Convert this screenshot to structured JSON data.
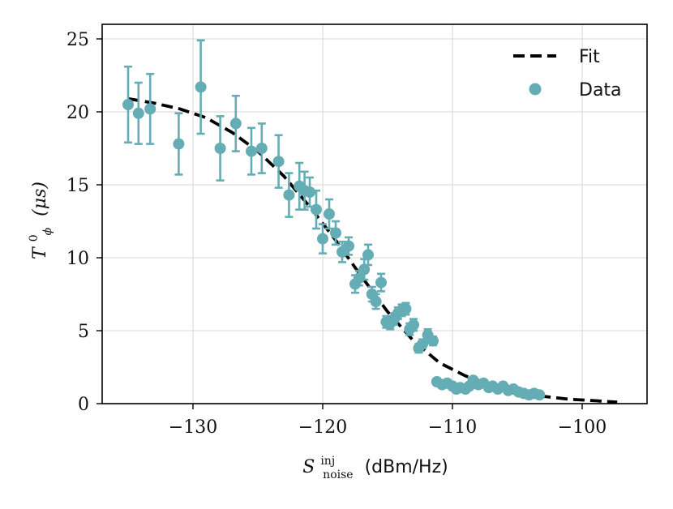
{
  "chart_data": {
    "type": "scatter",
    "title": "",
    "xlabel": {
      "symbol": "S",
      "superscript": "inj",
      "subscript": "noise",
      "units": "(dBm/Hz)"
    },
    "ylabel": {
      "symbol": "T",
      "superscript": "0",
      "subscript": "ϕ",
      "units": "(μs)"
    },
    "xlim": [
      -137,
      -95
    ],
    "ylim": [
      0,
      26
    ],
    "xticks": [
      -130,
      -120,
      -110,
      -100
    ],
    "xtick_labels": [
      "−130",
      "−120",
      "−110",
      "−100"
    ],
    "yticks": [
      0,
      5,
      10,
      15,
      20,
      25
    ],
    "ytick_labels": [
      "0",
      "5",
      "10",
      "15",
      "20",
      "25"
    ],
    "grid": true,
    "legend": {
      "position": "top-right",
      "entries": [
        "Fit",
        "Data"
      ]
    },
    "colors": {
      "data": "#64adb5",
      "fit": "#000000",
      "grid": "#dddddd"
    },
    "series": [
      {
        "name": "Data",
        "kind": "scatter",
        "x": [
          -135.0,
          -134.2,
          -133.3,
          -131.1,
          -129.4,
          -127.9,
          -126.7,
          -125.5,
          -124.7,
          -123.4,
          -122.6,
          -121.8,
          -121.4,
          -121.0,
          -120.5,
          -120.0,
          -119.5,
          -119.0,
          -118.5,
          -118.0,
          -117.5,
          -117.2,
          -116.8,
          -116.5,
          -116.2,
          -115.9,
          -115.5,
          -115.1,
          -114.8,
          -114.5,
          -114.2,
          -113.9,
          -113.6,
          -113.3,
          -113.0,
          -112.6,
          -112.3,
          -111.9,
          -111.5,
          -111.2,
          -110.8,
          -110.4,
          -110.0,
          -109.7,
          -109.4,
          -109.0,
          -108.7,
          -108.4,
          -108.0,
          -107.6,
          -107.2,
          -106.9,
          -106.5,
          -106.1,
          -105.7,
          -105.3,
          -104.9,
          -104.5,
          -104.1,
          -103.7,
          -103.3
        ],
        "y": [
          20.5,
          19.9,
          20.2,
          17.8,
          21.7,
          17.5,
          19.2,
          17.3,
          17.5,
          16.6,
          14.3,
          14.9,
          14.6,
          14.5,
          13.3,
          11.3,
          13.0,
          11.7,
          10.4,
          10.8,
          8.2,
          8.6,
          9.2,
          10.2,
          7.5,
          7.0,
          8.3,
          5.6,
          5.5,
          5.8,
          6.2,
          6.4,
          6.5,
          5.1,
          5.4,
          3.8,
          4.1,
          4.7,
          4.3,
          1.5,
          1.3,
          1.4,
          1.2,
          1.0,
          1.1,
          1.0,
          1.2,
          1.6,
          1.3,
          1.4,
          1.1,
          1.2,
          1.0,
          1.2,
          0.9,
          1.0,
          0.8,
          0.7,
          0.6,
          0.7,
          0.6
        ],
        "yerr": [
          2.6,
          2.1,
          2.4,
          2.1,
          3.2,
          2.2,
          1.9,
          1.6,
          1.7,
          1.8,
          1.5,
          1.6,
          1.3,
          1.0,
          1.3,
          1.0,
          1.0,
          0.8,
          0.7,
          0.6,
          0.6,
          0.5,
          0.7,
          0.7,
          0.5,
          0.5,
          0.6,
          0.4,
          0.4,
          0.4,
          0.4,
          0.4,
          0.4,
          0.4,
          0.4,
          0.3,
          0.3,
          0.4,
          0.3,
          0.2,
          0.2,
          0.2,
          0.2,
          0.2,
          0.2,
          0.2,
          0.2,
          0.2,
          0.2,
          0.2,
          0.2,
          0.2,
          0.2,
          0.2,
          0.2,
          0.2,
          0.2,
          0.2,
          0.2,
          0.2,
          0.2
        ]
      },
      {
        "name": "Fit",
        "kind": "line",
        "style": "dashed",
        "x": [
          -135,
          -133,
          -131,
          -129,
          -127,
          -125,
          -123,
          -121,
          -119,
          -117,
          -115,
          -113,
          -111,
          -109,
          -107,
          -105,
          -103,
          -101,
          -99,
          -97.3
        ],
        "y": [
          20.9,
          20.6,
          20.2,
          19.6,
          18.6,
          17.3,
          15.6,
          13.5,
          11.2,
          8.7,
          6.3,
          4.3,
          2.8,
          1.9,
          1.3,
          0.8,
          0.5,
          0.3,
          0.2,
          0.1
        ]
      }
    ]
  }
}
